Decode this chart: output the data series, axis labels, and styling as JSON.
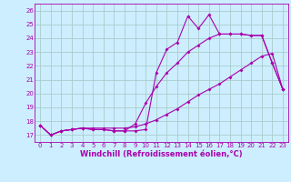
{
  "background_color": "#cceeff",
  "grid_color": "#aacccc",
  "line_color": "#aa00aa",
  "markersize": 2.0,
  "linewidth": 0.8,
  "xlabel": "Windchill (Refroidissement éolien,°C)",
  "xlabel_fontsize": 6.0,
  "tick_fontsize": 5.0,
  "ylim": [
    16.5,
    26.5
  ],
  "xlim": [
    -0.5,
    23.5
  ],
  "yticks": [
    17,
    18,
    19,
    20,
    21,
    22,
    23,
    24,
    25,
    26
  ],
  "xticks": [
    0,
    1,
    2,
    3,
    4,
    5,
    6,
    7,
    8,
    9,
    10,
    11,
    12,
    13,
    14,
    15,
    16,
    17,
    18,
    19,
    20,
    21,
    22,
    23
  ],
  "curve1_x": [
    0,
    1,
    2,
    3,
    4,
    5,
    6,
    7,
    8,
    9,
    10,
    11,
    12,
    13,
    14,
    15,
    16,
    17,
    18,
    19,
    20,
    21,
    22,
    23
  ],
  "curve1_y": [
    17.7,
    17.0,
    17.3,
    17.4,
    17.5,
    17.4,
    17.4,
    17.3,
    17.3,
    17.3,
    17.4,
    21.5,
    23.2,
    23.7,
    25.6,
    24.7,
    25.7,
    24.3,
    24.3,
    24.3,
    24.2,
    24.2,
    22.2,
    20.3
  ],
  "curve2_x": [
    0,
    1,
    2,
    3,
    4,
    5,
    6,
    7,
    8,
    9,
    10,
    11,
    12,
    13,
    14,
    15,
    16,
    17,
    18,
    19,
    20,
    21,
    22,
    23
  ],
  "curve2_y": [
    17.7,
    17.0,
    17.3,
    17.4,
    17.5,
    17.4,
    17.4,
    17.3,
    17.3,
    17.8,
    19.3,
    20.5,
    21.5,
    22.2,
    23.0,
    23.5,
    24.0,
    24.3,
    24.3,
    24.3,
    24.2,
    24.2,
    22.2,
    20.3
  ],
  "curve3_x": [
    0,
    1,
    2,
    3,
    4,
    5,
    6,
    7,
    8,
    9,
    10,
    11,
    12,
    13,
    14,
    15,
    16,
    17,
    18,
    19,
    20,
    21,
    22,
    23
  ],
  "curve3_y": [
    17.7,
    17.0,
    17.3,
    17.4,
    17.5,
    17.5,
    17.5,
    17.5,
    17.5,
    17.6,
    17.8,
    18.1,
    18.5,
    18.9,
    19.4,
    19.9,
    20.3,
    20.7,
    21.2,
    21.7,
    22.2,
    22.7,
    22.9,
    20.3
  ]
}
